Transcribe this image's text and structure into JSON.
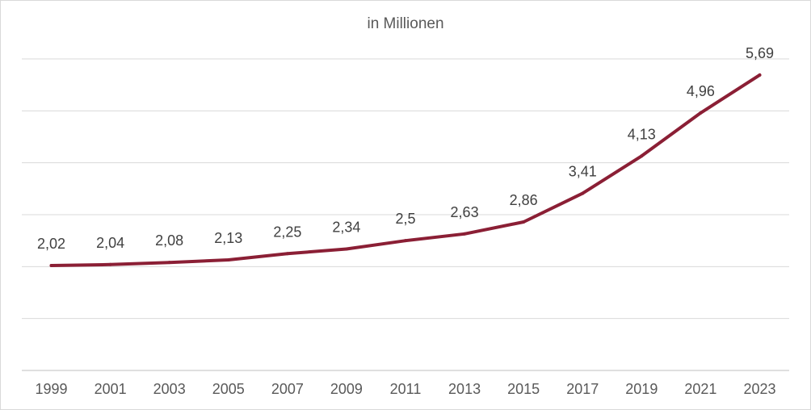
{
  "chart_data": {
    "type": "line",
    "subtitle": "in Millionen",
    "categories": [
      "1999",
      "2001",
      "2003",
      "2005",
      "2007",
      "2009",
      "2011",
      "2013",
      "2015",
      "2017",
      "2019",
      "2021",
      "2023"
    ],
    "series": [
      {
        "values": [
          2.02,
          2.04,
          2.08,
          2.13,
          2.25,
          2.34,
          2.5,
          2.63,
          2.86,
          3.41,
          4.13,
          4.96,
          5.69
        ],
        "data_labels": [
          "2,02",
          "2,04",
          "2,08",
          "2,13",
          "2,25",
          "2,34",
          "2,5",
          "2,63",
          "2,86",
          "3,41",
          "4,13",
          "4,96",
          "5,69"
        ],
        "color": "#8b1f35"
      }
    ],
    "ylim": [
      0,
      6
    ],
    "y_axis_labels_shown": false,
    "grid": "horizontal",
    "legend": "none",
    "colors": {
      "line": "#8b1f35",
      "gridline": "#d9d9d9",
      "text": "#595959"
    }
  }
}
